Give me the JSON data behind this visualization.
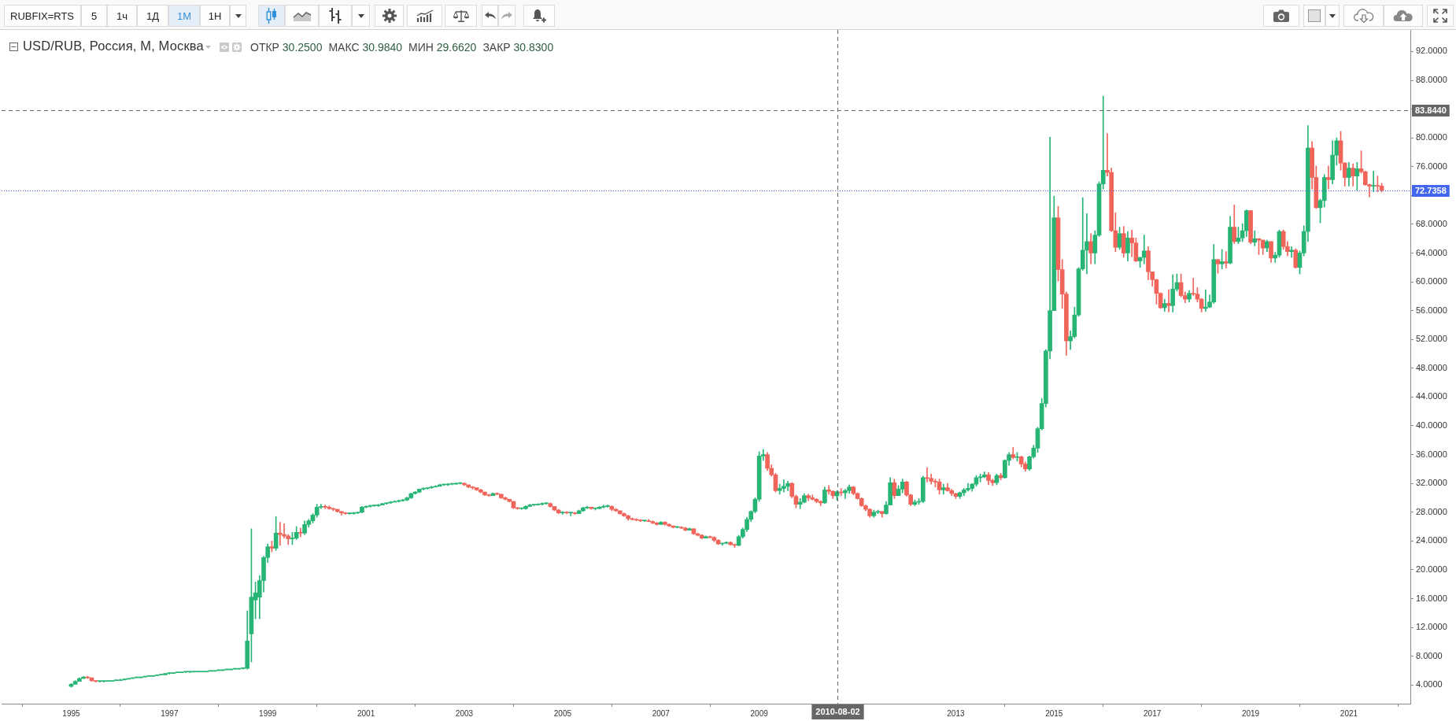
{
  "chart_data": {
    "type": "candlestick",
    "title": "USD/RUB, Россия, М, Москва",
    "annotations": [
      "RUBFIX=RTS",
      "5",
      "1ч",
      "1Д",
      "1М",
      "1Н",
      "ОТКР 30.2500",
      "МАКС 30.9840",
      "МИН 29.6620",
      "ЗАКР 30.8300"
    ],
    "xlim": [
      "1993-08",
      "2022-04"
    ],
    "xticks": [
      "1995",
      "1997",
      "1999",
      "2001",
      "2003",
      "2005",
      "2007",
      "2009",
      "2013",
      "2015",
      "2017",
      "2019",
      "2021"
    ],
    "ylim": [
      1.4,
      95
    ],
    "yticks": [
      {
        "value": 4,
        "label": "4.0000"
      },
      {
        "value": 8,
        "label": "8.0000"
      },
      {
        "value": 12,
        "label": "12.0000"
      },
      {
        "value": 16,
        "label": "16.0000"
      },
      {
        "value": 20,
        "label": "20.0000"
      },
      {
        "value": 24,
        "label": "24.0000"
      },
      {
        "value": 28,
        "label": "28.0000"
      },
      {
        "value": 32,
        "label": "32.0000"
      },
      {
        "value": 36,
        "label": "36.0000"
      },
      {
        "value": 40,
        "label": "40.0000"
      },
      {
        "value": 44,
        "label": "44.0000"
      },
      {
        "value": 48,
        "label": "48.0000"
      },
      {
        "value": 52,
        "label": "52.0000"
      },
      {
        "value": 56,
        "label": "56.0000"
      },
      {
        "value": 60,
        "label": "60.0000"
      },
      {
        "value": 64,
        "label": "64.0000"
      },
      {
        "value": 68,
        "label": "68.0000"
      },
      {
        "value": 72,
        "label": null
      },
      {
        "value": 76,
        "label": "76.0000"
      },
      {
        "value": 80,
        "label": "80.0000"
      },
      {
        "value": 84,
        "label": null
      },
      {
        "value": 88,
        "label": "88.0000"
      },
      {
        "value": 92,
        "label": "92.0000"
      }
    ],
    "ref_lines": [
      {
        "axis": "x",
        "value": "2010-08-02",
        "label": "2010-08-02",
        "color": "#666666",
        "line_style": "dashed"
      },
      {
        "axis": "y",
        "value": 83.844,
        "label": "83.8440",
        "color": "#666666",
        "line_style": "dashed"
      },
      {
        "axis": "y",
        "value": 72.7358,
        "label": "72.7358",
        "color": "#4466ee",
        "line_style": "dotted"
      }
    ],
    "x": [
      "1995-01",
      "1995-02",
      "1995-03",
      "1995-04",
      "1995-05",
      "1995-06",
      "1995-07",
      "1995-08",
      "1995-09",
      "1995-10",
      "1995-11",
      "1995-12",
      "1996-01",
      "1996-02",
      "1996-03",
      "1996-04",
      "1996-05",
      "1996-06",
      "1996-07",
      "1996-08",
      "1996-09",
      "1996-10",
      "1996-11",
      "1996-12",
      "1997-01",
      "1997-02",
      "1997-03",
      "1997-04",
      "1997-05",
      "1997-06",
      "1997-07",
      "1997-08",
      "1997-09",
      "1997-10",
      "1997-11",
      "1997-12",
      "1998-01",
      "1998-02",
      "1998-03",
      "1998-04",
      "1998-05",
      "1998-06",
      "1998-07",
      "1998-08",
      "1998-09",
      "1998-10",
      "1998-11",
      "1998-12",
      "1999-01",
      "1999-02",
      "1999-03",
      "1999-04",
      "1999-05",
      "1999-06",
      "1999-07",
      "1999-08",
      "1999-09",
      "1999-10",
      "1999-11",
      "1999-12",
      "2000-01",
      "2000-02",
      "2000-03",
      "2000-04",
      "2000-05",
      "2000-06",
      "2000-07",
      "2000-08",
      "2000-09",
      "2000-10",
      "2000-11",
      "2000-12",
      "2001-01",
      "2001-02",
      "2001-03",
      "2001-04",
      "2001-05",
      "2001-06",
      "2001-07",
      "2001-08",
      "2001-09",
      "2001-10",
      "2001-11",
      "2001-12",
      "2002-01",
      "2002-02",
      "2002-03",
      "2002-04",
      "2002-05",
      "2002-06",
      "2002-07",
      "2002-08",
      "2002-09",
      "2002-10",
      "2002-11",
      "2002-12",
      "2003-01",
      "2003-02",
      "2003-03",
      "2003-04",
      "2003-05",
      "2003-06",
      "2003-07",
      "2003-08",
      "2003-09",
      "2003-10",
      "2003-11",
      "2003-12",
      "2004-01",
      "2004-02",
      "2004-03",
      "2004-04",
      "2004-05",
      "2004-06",
      "2004-07",
      "2004-08",
      "2004-09",
      "2004-10",
      "2004-11",
      "2004-12",
      "2005-01",
      "2005-02",
      "2005-03",
      "2005-04",
      "2005-05",
      "2005-06",
      "2005-07",
      "2005-08",
      "2005-09",
      "2005-10",
      "2005-11",
      "2005-12",
      "2006-01",
      "2006-02",
      "2006-03",
      "2006-04",
      "2006-05",
      "2006-06",
      "2006-07",
      "2006-08",
      "2006-09",
      "2006-10",
      "2006-11",
      "2006-12",
      "2007-01",
      "2007-02",
      "2007-03",
      "2007-04",
      "2007-05",
      "2007-06",
      "2007-07",
      "2007-08",
      "2007-09",
      "2007-10",
      "2007-11",
      "2007-12",
      "2008-01",
      "2008-02",
      "2008-03",
      "2008-04",
      "2008-05",
      "2008-06",
      "2008-07",
      "2008-08",
      "2008-09",
      "2008-10",
      "2008-11",
      "2008-12",
      "2009-01",
      "2009-02",
      "2009-03",
      "2009-04",
      "2009-05",
      "2009-06",
      "2009-07",
      "2009-08",
      "2009-09",
      "2009-10",
      "2009-11",
      "2009-12",
      "2010-01",
      "2010-02",
      "2010-03",
      "2010-04",
      "2010-05",
      "2010-06",
      "2010-07",
      "2010-08",
      "2010-09",
      "2010-10",
      "2010-11",
      "2010-12",
      "2011-01",
      "2011-02",
      "2011-03",
      "2011-04",
      "2011-05",
      "2011-06",
      "2011-07",
      "2011-08",
      "2011-09",
      "2011-10",
      "2011-11",
      "2011-12",
      "2012-01",
      "2012-02",
      "2012-03",
      "2012-04",
      "2012-05",
      "2012-06",
      "2012-07",
      "2012-08",
      "2012-09",
      "2012-10",
      "2012-11",
      "2012-12",
      "2013-01",
      "2013-02",
      "2013-03",
      "2013-04",
      "2013-05",
      "2013-06",
      "2013-07",
      "2013-08",
      "2013-09",
      "2013-10",
      "2013-11",
      "2013-12",
      "2014-01",
      "2014-02",
      "2014-03",
      "2014-04",
      "2014-05",
      "2014-06",
      "2014-07",
      "2014-08",
      "2014-09",
      "2014-10",
      "2014-11",
      "2014-12",
      "2015-01",
      "2015-02",
      "2015-03",
      "2015-04",
      "2015-05",
      "2015-06",
      "2015-07",
      "2015-08",
      "2015-09",
      "2015-10",
      "2015-11",
      "2015-12",
      "2016-01",
      "2016-02",
      "2016-03",
      "2016-04",
      "2016-05",
      "2016-06",
      "2016-07",
      "2016-08",
      "2016-09",
      "2016-10",
      "2016-11",
      "2016-12",
      "2017-01",
      "2017-02",
      "2017-03",
      "2017-04",
      "2017-05",
      "2017-06",
      "2017-07",
      "2017-08",
      "2017-09",
      "2017-10",
      "2017-11",
      "2017-12",
      "2018-01",
      "2018-02",
      "2018-03",
      "2018-04",
      "2018-05",
      "2018-06",
      "2018-07",
      "2018-08",
      "2018-09",
      "2018-10",
      "2018-11",
      "2018-12",
      "2019-01",
      "2019-02",
      "2019-03",
      "2019-04",
      "2019-05",
      "2019-06",
      "2019-07",
      "2019-08",
      "2019-09",
      "2019-10",
      "2019-11",
      "2019-12",
      "2020-01",
      "2020-02",
      "2020-03",
      "2020-04",
      "2020-05",
      "2020-06",
      "2020-07",
      "2020-08",
      "2020-09",
      "2020-10",
      "2020-11",
      "2020-12",
      "2021-01",
      "2021-02",
      "2021-03",
      "2021-04",
      "2021-05",
      "2021-06",
      "2021-07",
      "2021-08",
      "2021-09"
    ],
    "ohlc": [
      [
        3.8,
        4.2,
        3.7,
        4.1
      ],
      [
        4.1,
        4.6,
        4.1,
        4.5
      ],
      [
        4.5,
        5.0,
        4.5,
        4.9
      ],
      [
        4.9,
        5.2,
        4.9,
        5.1
      ],
      [
        5.1,
        5.2,
        4.9,
        5.0
      ],
      [
        5.0,
        5.0,
        4.5,
        4.6
      ],
      [
        4.6,
        4.6,
        4.4,
        4.5
      ],
      [
        4.5,
        4.5,
        4.4,
        4.5
      ],
      [
        4.5,
        4.6,
        4.4,
        4.5
      ],
      [
        4.5,
        4.6,
        4.5,
        4.5
      ],
      [
        4.5,
        4.6,
        4.5,
        4.6
      ],
      [
        4.6,
        4.7,
        4.6,
        4.6
      ],
      [
        4.6,
        4.8,
        4.6,
        4.7
      ],
      [
        4.7,
        4.9,
        4.7,
        4.8
      ],
      [
        4.8,
        4.9,
        4.8,
        4.9
      ],
      [
        4.9,
        5.0,
        4.9,
        5.0
      ],
      [
        5.0,
        5.1,
        5.0,
        5.0
      ],
      [
        5.0,
        5.1,
        5.0,
        5.1
      ],
      [
        5.1,
        5.2,
        5.1,
        5.2
      ],
      [
        5.2,
        5.3,
        5.2,
        5.2
      ],
      [
        5.2,
        5.3,
        5.2,
        5.3
      ],
      [
        5.3,
        5.4,
        5.3,
        5.4
      ],
      [
        5.4,
        5.5,
        5.4,
        5.4
      ],
      [
        5.4,
        5.6,
        5.4,
        5.6
      ],
      [
        5.6,
        5.7,
        5.5,
        5.6
      ],
      [
        5.6,
        5.7,
        5.6,
        5.7
      ],
      [
        5.7,
        5.8,
        5.7,
        5.7
      ],
      [
        5.7,
        5.8,
        5.7,
        5.8
      ],
      [
        5.8,
        5.8,
        5.7,
        5.8
      ],
      [
        5.8,
        5.8,
        5.7,
        5.8
      ],
      [
        5.8,
        5.8,
        5.8,
        5.8
      ],
      [
        5.8,
        5.9,
        5.8,
        5.8
      ],
      [
        5.8,
        5.9,
        5.8,
        5.8
      ],
      [
        5.8,
        5.9,
        5.8,
        5.9
      ],
      [
        5.9,
        5.9,
        5.9,
        5.9
      ],
      [
        5.9,
        6.0,
        5.9,
        6.0
      ],
      [
        6.0,
        6.1,
        6.0,
        6.0
      ],
      [
        6.0,
        6.1,
        6.0,
        6.1
      ],
      [
        6.1,
        6.2,
        6.1,
        6.1
      ],
      [
        6.1,
        6.2,
        6.1,
        6.2
      ],
      [
        6.2,
        6.3,
        6.2,
        6.2
      ],
      [
        6.2,
        6.3,
        6.2,
        6.3
      ],
      [
        6.3,
        6.4,
        6.2,
        6.3
      ],
      [
        6.3,
        14.3,
        6.2,
        10.1
      ],
      [
        11.1,
        25.7,
        7.2,
        16.2
      ],
      [
        15.8,
        18.3,
        13.2,
        16.8
      ],
      [
        16.2,
        19.2,
        13.2,
        18.5
      ],
      [
        18.5,
        21.9,
        16.9,
        21.7
      ],
      [
        21.7,
        23.6,
        21.0,
        23.2
      ],
      [
        23.2,
        24.0,
        22.5,
        23.0
      ],
      [
        23.0,
        27.4,
        22.7,
        25.1
      ],
      [
        25.1,
        26.6,
        23.4,
        24.9
      ],
      [
        24.9,
        26.4,
        24.4,
        24.7
      ],
      [
        24.7,
        24.9,
        23.5,
        24.3
      ],
      [
        24.3,
        25.2,
        23.5,
        24.4
      ],
      [
        24.4,
        26.0,
        24.2,
        25.2
      ],
      [
        25.2,
        25.8,
        24.6,
        25.1
      ],
      [
        25.1,
        26.8,
        24.9,
        26.3
      ],
      [
        26.3,
        27.0,
        25.9,
        26.8
      ],
      [
        26.8,
        27.8,
        26.5,
        27.6
      ],
      [
        27.6,
        29.1,
        27.3,
        28.7
      ],
      [
        28.7,
        29.1,
        28.5,
        28.8
      ],
      [
        28.8,
        29.0,
        28.5,
        28.7
      ],
      [
        28.7,
        28.9,
        28.4,
        28.5
      ],
      [
        28.5,
        28.6,
        28.2,
        28.4
      ],
      [
        28.4,
        28.4,
        28.0,
        28.1
      ],
      [
        28.1,
        28.1,
        27.6,
        27.9
      ],
      [
        27.9,
        28.0,
        27.7,
        27.8
      ],
      [
        27.8,
        27.9,
        27.7,
        27.8
      ],
      [
        27.8,
        28.0,
        27.7,
        27.9
      ],
      [
        27.9,
        28.0,
        27.8,
        28.0
      ],
      [
        28.0,
        28.8,
        27.9,
        28.7
      ],
      [
        28.7,
        28.9,
        28.6,
        28.8
      ],
      [
        28.8,
        29.0,
        28.7,
        28.9
      ],
      [
        28.9,
        29.0,
        28.8,
        28.9
      ],
      [
        28.9,
        29.1,
        28.8,
        29.0
      ],
      [
        29.0,
        29.2,
        29.0,
        29.2
      ],
      [
        29.2,
        29.3,
        29.1,
        29.3
      ],
      [
        29.3,
        29.5,
        29.2,
        29.4
      ],
      [
        29.4,
        29.6,
        29.4,
        29.5
      ],
      [
        29.5,
        29.7,
        29.4,
        29.6
      ],
      [
        29.6,
        29.8,
        29.5,
        29.7
      ],
      [
        29.7,
        30.1,
        29.6,
        30.0
      ],
      [
        30.0,
        30.6,
        29.9,
        30.6
      ],
      [
        30.6,
        30.9,
        30.5,
        30.8
      ],
      [
        30.8,
        31.2,
        30.7,
        31.2
      ],
      [
        31.2,
        31.4,
        31.1,
        31.3
      ],
      [
        31.3,
        31.4,
        31.2,
        31.4
      ],
      [
        31.4,
        31.6,
        31.3,
        31.5
      ],
      [
        31.5,
        31.7,
        31.5,
        31.6
      ],
      [
        31.6,
        31.9,
        31.6,
        31.8
      ],
      [
        31.8,
        31.9,
        31.7,
        31.8
      ],
      [
        31.8,
        32.0,
        31.7,
        31.9
      ],
      [
        31.9,
        32.0,
        31.8,
        31.9
      ],
      [
        31.9,
        32.1,
        31.9,
        32.0
      ],
      [
        32.0,
        32.1,
        31.9,
        32.0
      ],
      [
        32.0,
        32.1,
        31.7,
        31.8
      ],
      [
        31.8,
        31.8,
        31.4,
        31.5
      ],
      [
        31.5,
        31.6,
        31.2,
        31.4
      ],
      [
        31.4,
        31.4,
        31.0,
        31.1
      ],
      [
        31.1,
        31.2,
        30.7,
        30.8
      ],
      [
        30.8,
        30.8,
        30.3,
        30.4
      ],
      [
        30.4,
        30.5,
        30.2,
        30.3
      ],
      [
        30.3,
        30.7,
        30.3,
        30.6
      ],
      [
        30.6,
        30.7,
        30.4,
        30.5
      ],
      [
        30.5,
        30.5,
        29.9,
        30.0
      ],
      [
        30.0,
        30.1,
        29.7,
        29.8
      ],
      [
        29.8,
        29.8,
        29.4,
        29.5
      ],
      [
        29.5,
        29.5,
        28.5,
        28.6
      ],
      [
        28.6,
        28.7,
        28.4,
        28.5
      ],
      [
        28.5,
        28.6,
        28.4,
        28.5
      ],
      [
        28.5,
        28.9,
        28.4,
        28.8
      ],
      [
        28.8,
        29.1,
        28.8,
        29.0
      ],
      [
        29.0,
        29.1,
        28.9,
        29.0
      ],
      [
        29.0,
        29.2,
        29.0,
        29.1
      ],
      [
        29.1,
        29.3,
        29.0,
        29.2
      ],
      [
        29.2,
        29.3,
        29.1,
        29.2
      ],
      [
        29.2,
        29.3,
        28.7,
        28.8
      ],
      [
        28.8,
        28.8,
        28.2,
        28.3
      ],
      [
        28.3,
        28.4,
        27.8,
        27.9
      ],
      [
        27.9,
        28.1,
        27.7,
        28.0
      ],
      [
        28.0,
        28.1,
        27.8,
        27.9
      ],
      [
        27.9,
        28.0,
        27.5,
        27.9
      ],
      [
        27.9,
        28.0,
        27.7,
        27.8
      ],
      [
        27.8,
        28.3,
        27.8,
        28.2
      ],
      [
        28.2,
        28.7,
        28.1,
        28.6
      ],
      [
        28.6,
        28.8,
        28.5,
        28.7
      ],
      [
        28.7,
        28.7,
        28.4,
        28.5
      ],
      [
        28.5,
        28.6,
        28.3,
        28.5
      ],
      [
        28.5,
        28.8,
        28.5,
        28.7
      ],
      [
        28.7,
        29.0,
        28.6,
        28.8
      ],
      [
        28.8,
        29.0,
        28.7,
        28.8
      ],
      [
        28.8,
        28.9,
        28.2,
        28.4
      ],
      [
        28.4,
        28.5,
        28.1,
        28.2
      ],
      [
        28.2,
        28.2,
        27.7,
        27.8
      ],
      [
        27.8,
        27.9,
        27.4,
        27.5
      ],
      [
        27.5,
        27.6,
        26.9,
        27.1
      ],
      [
        27.1,
        27.2,
        26.9,
        27.0
      ],
      [
        27.0,
        27.1,
        26.8,
        26.9
      ],
      [
        26.9,
        27.0,
        26.7,
        26.8
      ],
      [
        26.8,
        26.9,
        26.7,
        26.8
      ],
      [
        26.8,
        27.0,
        26.7,
        26.7
      ],
      [
        26.7,
        26.8,
        26.4,
        26.5
      ],
      [
        26.5,
        26.6,
        26.2,
        26.3
      ],
      [
        26.3,
        26.7,
        26.3,
        26.6
      ],
      [
        26.6,
        26.7,
        26.2,
        26.3
      ],
      [
        26.3,
        26.4,
        26.0,
        26.1
      ],
      [
        26.1,
        26.1,
        25.8,
        25.9
      ],
      [
        25.9,
        26.0,
        25.8,
        25.9
      ],
      [
        25.9,
        26.0,
        25.7,
        25.8
      ],
      [
        25.8,
        25.9,
        25.4,
        25.5
      ],
      [
        25.5,
        25.8,
        25.5,
        25.7
      ],
      [
        25.7,
        25.7,
        24.9,
        25.0
      ],
      [
        25.0,
        25.1,
        24.7,
        24.8
      ],
      [
        24.8,
        24.9,
        24.3,
        24.4
      ],
      [
        24.4,
        24.7,
        24.4,
        24.6
      ],
      [
        24.6,
        24.7,
        24.4,
        24.5
      ],
      [
        24.5,
        24.6,
        23.9,
        24.1
      ],
      [
        24.1,
        24.2,
        23.5,
        23.6
      ],
      [
        23.6,
        23.7,
        23.4,
        23.7
      ],
      [
        23.7,
        23.9,
        23.6,
        23.8
      ],
      [
        23.8,
        23.9,
        23.4,
        23.5
      ],
      [
        23.5,
        23.6,
        23.1,
        23.4
      ],
      [
        23.4,
        24.8,
        23.3,
        24.6
      ],
      [
        24.6,
        25.8,
        24.4,
        25.6
      ],
      [
        25.6,
        27.3,
        25.3,
        27.0
      ],
      [
        27.0,
        28.2,
        26.7,
        28.1
      ],
      [
        28.1,
        30.0,
        27.9,
        29.8
      ],
      [
        29.8,
        36.4,
        29.5,
        35.8
      ],
      [
        35.8,
        36.7,
        35.2,
        36.0
      ],
      [
        36.0,
        36.3,
        33.8,
        34.1
      ],
      [
        34.1,
        34.6,
        33.0,
        33.2
      ],
      [
        33.2,
        33.4,
        30.8,
        31.0
      ],
      [
        31.0,
        31.9,
        30.5,
        31.3
      ],
      [
        31.3,
        32.5,
        30.8,
        31.6
      ],
      [
        31.6,
        32.3,
        31.0,
        32.0
      ],
      [
        32.0,
        32.1,
        30.0,
        30.2
      ],
      [
        30.2,
        30.4,
        28.6,
        29.1
      ],
      [
        29.1,
        29.9,
        28.5,
        29.4
      ],
      [
        29.4,
        30.6,
        29.3,
        30.3
      ],
      [
        30.3,
        30.5,
        29.6,
        30.0
      ],
      [
        30.0,
        30.4,
        29.7,
        29.8
      ],
      [
        29.8,
        29.9,
        29.3,
        29.5
      ],
      [
        29.5,
        29.6,
        28.9,
        29.3
      ],
      [
        29.3,
        31.5,
        29.2,
        31.1
      ],
      [
        31.1,
        31.7,
        30.5,
        30.9
      ],
      [
        30.9,
        31.0,
        29.9,
        30.3
      ],
      [
        30.25,
        30.984,
        29.662,
        30.83
      ],
      [
        30.8,
        31.3,
        30.3,
        30.7
      ],
      [
        30.7,
        31.2,
        29.9,
        31.0
      ],
      [
        31.0,
        31.8,
        30.6,
        31.5
      ],
      [
        31.5,
        31.6,
        30.4,
        30.6
      ],
      [
        30.6,
        30.7,
        29.8,
        29.9
      ],
      [
        29.9,
        30.0,
        28.8,
        28.9
      ],
      [
        28.9,
        29.0,
        28.2,
        28.4
      ],
      [
        28.4,
        28.5,
        27.3,
        27.5
      ],
      [
        27.5,
        28.3,
        27.3,
        28.0
      ],
      [
        28.0,
        28.3,
        27.8,
        28.1
      ],
      [
        28.1,
        28.1,
        27.3,
        27.8
      ],
      [
        27.8,
        29.5,
        27.7,
        29.0
      ],
      [
        29.0,
        32.8,
        29.0,
        32.1
      ],
      [
        32.1,
        32.6,
        29.9,
        30.3
      ],
      [
        30.3,
        31.7,
        30.3,
        31.2
      ],
      [
        31.2,
        32.6,
        30.7,
        32.2
      ],
      [
        32.2,
        32.3,
        30.2,
        30.4
      ],
      [
        30.4,
        30.5,
        28.9,
        29.1
      ],
      [
        29.1,
        29.7,
        28.9,
        29.4
      ],
      [
        29.4,
        29.9,
        29.1,
        29.5
      ],
      [
        29.5,
        33.0,
        29.3,
        32.8
      ],
      [
        32.8,
        34.2,
        32.2,
        32.7
      ],
      [
        32.7,
        33.3,
        31.9,
        32.3
      ],
      [
        32.3,
        32.6,
        31.5,
        32.2
      ],
      [
        32.2,
        32.6,
        30.5,
        31.1
      ],
      [
        31.1,
        31.9,
        30.5,
        31.4
      ],
      [
        31.4,
        32.0,
        30.9,
        31.0
      ],
      [
        31.0,
        31.2,
        30.3,
        30.6
      ],
      [
        30.6,
        30.6,
        29.9,
        30.2
      ],
      [
        30.2,
        30.8,
        29.9,
        30.7
      ],
      [
        30.7,
        31.3,
        30.3,
        31.1
      ],
      [
        31.1,
        32.0,
        30.9,
        31.3
      ],
      [
        31.3,
        32.0,
        30.9,
        31.9
      ],
      [
        31.9,
        33.1,
        31.6,
        32.8
      ],
      [
        32.8,
        33.3,
        32.2,
        32.9
      ],
      [
        32.9,
        33.6,
        32.8,
        33.2
      ],
      [
        33.2,
        33.5,
        31.8,
        32.4
      ],
      [
        32.4,
        32.6,
        31.7,
        32.1
      ],
      [
        32.1,
        33.3,
        31.8,
        33.1
      ],
      [
        33.1,
        33.4,
        32.5,
        32.8
      ],
      [
        32.8,
        35.3,
        32.7,
        35.2
      ],
      [
        35.2,
        36.3,
        34.5,
        36.0
      ],
      [
        36.0,
        37.0,
        35.4,
        35.6
      ],
      [
        35.6,
        36.3,
        35.1,
        35.7
      ],
      [
        35.7,
        35.8,
        34.3,
        34.7
      ],
      [
        34.7,
        35.0,
        33.7,
        34.0
      ],
      [
        34.0,
        35.8,
        33.8,
        35.7
      ],
      [
        35.7,
        37.3,
        35.5,
        36.9
      ],
      [
        36.9,
        39.8,
        36.3,
        39.6
      ],
      [
        39.6,
        43.8,
        39.4,
        43.1
      ],
      [
        43.1,
        50.6,
        42.6,
        50.4
      ],
      [
        50.4,
        80.1,
        49.3,
        56.0
      ],
      [
        56.0,
        71.9,
        56.0,
        68.9
      ],
      [
        68.9,
        70.5,
        60.1,
        61.7
      ],
      [
        61.7,
        63.1,
        56.3,
        58.3
      ],
      [
        58.3,
        58.6,
        49.8,
        51.8
      ],
      [
        51.8,
        53.2,
        50.6,
        52.4
      ],
      [
        52.4,
        56.5,
        52.2,
        55.4
      ],
      [
        55.4,
        62.0,
        55.2,
        61.8
      ],
      [
        61.8,
        71.7,
        61.6,
        64.4
      ],
      [
        64.4,
        69.5,
        61.1,
        65.6
      ],
      [
        65.6,
        66.7,
        62.5,
        64.0
      ],
      [
        64.0,
        67.1,
        62.5,
        66.5
      ],
      [
        66.5,
        73.9,
        66.3,
        73.6
      ],
      [
        73.6,
        85.8,
        72.9,
        75.5
      ],
      [
        75.5,
        80.6,
        74.7,
        75.2
      ],
      [
        75.2,
        75.8,
        67.0,
        67.1
      ],
      [
        67.1,
        69.6,
        64.2,
        64.8
      ],
      [
        64.8,
        67.6,
        64.5,
        66.7
      ],
      [
        66.7,
        67.7,
        63.4,
        64.0
      ],
      [
        64.0,
        67.0,
        62.9,
        66.1
      ],
      [
        66.1,
        67.2,
        63.5,
        65.4
      ],
      [
        65.4,
        66.1,
        62.8,
        62.9
      ],
      [
        62.9,
        63.4,
        62.0,
        63.4
      ],
      [
        63.4,
        66.5,
        62.5,
        64.3
      ],
      [
        64.3,
        64.9,
        60.3,
        61.4
      ],
      [
        61.4,
        61.4,
        59.4,
        60.3
      ],
      [
        60.3,
        60.4,
        56.9,
        58.4
      ],
      [
        58.4,
        58.5,
        56.3,
        56.4
      ],
      [
        56.4,
        57.6,
        55.9,
        57.0
      ],
      [
        57.0,
        58.9,
        55.8,
        56.7
      ],
      [
        56.7,
        61.0,
        55.8,
        59.0
      ],
      [
        59.0,
        61.1,
        58.7,
        59.9
      ],
      [
        59.9,
        61.1,
        57.9,
        58.1
      ],
      [
        58.1,
        58.6,
        57.1,
        57.6
      ],
      [
        57.6,
        58.8,
        57.2,
        58.4
      ],
      [
        58.4,
        60.5,
        58.1,
        58.3
      ],
      [
        58.3,
        59.2,
        57.2,
        57.6
      ],
      [
        57.6,
        57.7,
        55.8,
        56.3
      ],
      [
        56.3,
        58.9,
        55.9,
        56.5
      ],
      [
        56.5,
        58.2,
        56.4,
        57.2
      ],
      [
        57.2,
        65.2,
        57.0,
        63.1
      ],
      [
        63.1,
        63.1,
        61.2,
        62.5
      ],
      [
        62.5,
        64.5,
        61.8,
        62.8
      ],
      [
        62.8,
        64.2,
        61.9,
        62.6
      ],
      [
        62.6,
        69.1,
        62.5,
        67.6
      ],
      [
        67.6,
        70.7,
        65.3,
        65.6
      ],
      [
        65.6,
        67.6,
        65.3,
        66.1
      ],
      [
        66.1,
        68.1,
        65.6,
        67.1
      ],
      [
        67.1,
        70.0,
        66.3,
        69.9
      ],
      [
        69.9,
        69.9,
        65.3,
        65.5
      ],
      [
        65.5,
        67.1,
        65.0,
        66.0
      ],
      [
        66.0,
        66.0,
        63.8,
        65.8
      ],
      [
        65.8,
        65.8,
        63.8,
        64.7
      ],
      [
        64.7,
        65.8,
        64.2,
        65.6
      ],
      [
        65.6,
        65.6,
        62.7,
        63.3
      ],
      [
        63.3,
        64.1,
        62.7,
        63.7
      ],
      [
        63.7,
        67.2,
        63.4,
        67.0
      ],
      [
        67.0,
        67.2,
        64.5,
        64.9
      ],
      [
        64.9,
        65.6,
        63.6,
        64.2
      ],
      [
        64.2,
        64.9,
        63.4,
        64.4
      ],
      [
        64.4,
        64.6,
        61.9,
        62.0
      ],
      [
        62.0,
        64.3,
        61.1,
        64.0
      ],
      [
        64.0,
        67.8,
        63.6,
        67.0
      ],
      [
        67.0,
        81.7,
        65.6,
        78.6
      ],
      [
        78.6,
        79.5,
        72.9,
        74.5
      ],
      [
        74.5,
        76.1,
        70.2,
        70.3
      ],
      [
        70.3,
        71.5,
        68.2,
        71.3
      ],
      [
        71.3,
        74.9,
        70.4,
        74.5
      ],
      [
        74.5,
        76.1,
        72.9,
        74.2
      ],
      [
        74.2,
        79.6,
        73.6,
        77.6
      ],
      [
        77.6,
        80.0,
        76.2,
        79.6
      ],
      [
        79.6,
        80.9,
        75.5,
        76.5
      ],
      [
        76.5,
        76.6,
        73.3,
        74.5
      ],
      [
        74.5,
        76.6,
        73.3,
        75.8
      ],
      [
        75.8,
        76.4,
        73.3,
        74.7
      ],
      [
        74.7,
        76.6,
        72.7,
        75.7
      ],
      [
        75.7,
        78.2,
        75.1,
        75.3
      ],
      [
        75.3,
        75.4,
        73.4,
        73.5
      ],
      [
        73.5,
        73.6,
        71.8,
        73.3
      ],
      [
        73.3,
        75.4,
        72.5,
        73.4
      ],
      [
        73.4,
        74.7,
        72.5,
        73.3
      ],
      [
        73.3,
        73.7,
        72.5,
        72.7358
      ]
    ],
    "colors": [
      "#26b574",
      "#26b574",
      "#26b574",
      "#26b574",
      "#f0645a",
      "#f0645a",
      "#f0645a",
      "#26b574",
      "#26b574",
      "#26b574",
      "#26b574",
      "#26b574",
      "#26b574",
      "#26b574",
      "#26b574",
      "#26b574",
      "#26b574",
      "#26b574",
      "#26b574",
      "#26b574",
      "#26b574",
      "#26b574",
      "#26b574",
      "#26b574",
      "#26b574",
      "#26b574",
      "#26b574",
      "#26b574",
      "#26b574",
      "#26b574",
      "#26b574",
      "#26b574",
      "#26b574",
      "#26b574",
      "#26b574",
      "#26b574",
      "#26b574",
      "#26b574",
      "#26b574",
      "#26b574",
      "#26b574",
      "#26b574",
      "#26b574",
      "#26b574",
      "#26b574",
      "#26b574",
      "#26b574",
      "#26b574",
      "#26b574",
      "#f0645a",
      "#26b574",
      "#f0645a",
      "#f0645a",
      "#f0645a",
      "#26b574",
      "#26b574",
      "#f0645a",
      "#26b574",
      "#26b574",
      "#26b574",
      "#26b574",
      "#26b574",
      "#f0645a",
      "#f0645a",
      "#f0645a",
      "#f0645a",
      "#f0645a",
      "#f0645a",
      "#26b574",
      "#26b574",
      "#26b574",
      "#26b574",
      "#26b574",
      "#26b574",
      "#26b574",
      "#26b574",
      "#26b574",
      "#26b574",
      "#26b574",
      "#26b574",
      "#26b574",
      "#26b574",
      "#26b574",
      "#26b574",
      "#26b574",
      "#26b574",
      "#26b574",
      "#26b574",
      "#26b574",
      "#26b574",
      "#26b574",
      "#26b574",
      "#26b574",
      "#26b574",
      "#26b574",
      "#26b574",
      "#f0645a",
      "#f0645a",
      "#f0645a",
      "#f0645a",
      "#f0645a",
      "#f0645a",
      "#f0645a",
      "#26b574",
      "#f0645a",
      "#f0645a",
      "#f0645a",
      "#f0645a",
      "#f0645a",
      "#f0645a",
      "#26b574",
      "#26b574",
      "#26b574",
      "#26b574",
      "#26b574",
      "#26b574",
      "#26b574",
      "#f0645a",
      "#f0645a",
      "#f0645a",
      "#26b574",
      "#f0645a",
      "#26b574",
      "#f0645a",
      "#26b574",
      "#26b574",
      "#26b574",
      "#f0645a",
      "#26b574",
      "#26b574",
      "#26b574",
      "#26b574",
      "#f0645a",
      "#f0645a",
      "#f0645a",
      "#f0645a",
      "#f0645a",
      "#f0645a",
      "#f0645a",
      "#f0645a",
      "#26b574",
      "#f0645a",
      "#f0645a",
      "#f0645a",
      "#26b574",
      "#f0645a",
      "#f0645a",
      "#f0645a",
      "#26b574",
      "#f0645a",
      "#f0645a",
      "#26b574",
      "#f0645a",
      "#f0645a",
      "#f0645a",
      "#26b574",
      "#f0645a",
      "#f0645a",
      "#f0645a",
      "#26b574",
      "#26b574",
      "#f0645a",
      "#f0645a",
      "#26b574",
      "#26b574",
      "#26b574",
      "#26b574",
      "#26b574",
      "#26b574",
      "#26b574",
      "#f0645a",
      "#f0645a",
      "#f0645a",
      "#26b574",
      "#26b574",
      "#26b574",
      "#f0645a",
      "#f0645a",
      "#26b574",
      "#26b574",
      "#f0645a",
      "#f0645a",
      "#f0645a",
      "#f0645a",
      "#26b574",
      "#f0645a",
      "#f0645a",
      "#26b574",
      "#f0645a",
      "#26b574",
      "#26b574",
      "#f0645a",
      "#f0645a",
      "#f0645a",
      "#f0645a",
      "#f0645a",
      "#26b574",
      "#26b574",
      "#f0645a",
      "#26b574",
      "#26b574",
      "#f0645a",
      "#26b574",
      "#26b574",
      "#f0645a",
      "#f0645a",
      "#26b574",
      "#26b574",
      "#26b574",
      "#f0645a",
      "#f0645a",
      "#f0645a",
      "#f0645a",
      "#26b574",
      "#f0645a",
      "#f0645a",
      "#f0645a",
      "#26b574",
      "#26b574",
      "#26b574",
      "#26b574",
      "#26b574",
      "#26b574",
      "#26b574",
      "#f0645a",
      "#f0645a",
      "#26b574",
      "#f0645a",
      "#26b574",
      "#26b574",
      "#f0645a",
      "#26b574",
      "#f0645a",
      "#f0645a",
      "#26b574",
      "#26b574",
      "#26b574",
      "#26b574",
      "#26b574",
      "#26b574",
      "#26b574",
      "#f0645a",
      "#f0645a",
      "#f0645a",
      "#26b574",
      "#26b574",
      "#26b574",
      "#26b574",
      "#26b574",
      "#f0645a",
      "#26b574",
      "#26b574",
      "#26b574",
      "#f0645a",
      "#f0645a",
      "#f0645a",
      "#26b574",
      "#f0645a",
      "#26b574",
      "#f0645a",
      "#f0645a",
      "#26b574",
      "#26b574",
      "#f0645a",
      "#f0645a",
      "#f0645a",
      "#f0645a",
      "#26b574",
      "#f0645a",
      "#26b574",
      "#26b574",
      "#f0645a",
      "#f0645a",
      "#26b574",
      "#f0645a",
      "#f0645a",
      "#f0645a",
      "#26b574",
      "#26b574",
      "#26b574",
      "#f0645a",
      "#26b574",
      "#f0645a",
      "#26b574",
      "#f0645a",
      "#26b574",
      "#26b574",
      "#26b574",
      "#f0645a",
      "#26b574",
      "#f0645a",
      "#f0645a",
      "#26b574",
      "#f0645a",
      "#26b574",
      "#26b574",
      "#f0645a",
      "#f0645a",
      "#26b574",
      "#f0645a",
      "#26b574",
      "#26b574",
      "#26b574",
      "#f0645a",
      "#f0645a",
      "#26b574",
      "#26b574",
      "#f0645a",
      "#26b574",
      "#26b574",
      "#f0645a",
      "#f0645a",
      "#26b574",
      "#f0645a",
      "#26b574",
      "#f0645a",
      "#f0645a",
      "#f0645a",
      "#26b574",
      "#f0645a",
      "#f0645a"
    ]
  }
}
